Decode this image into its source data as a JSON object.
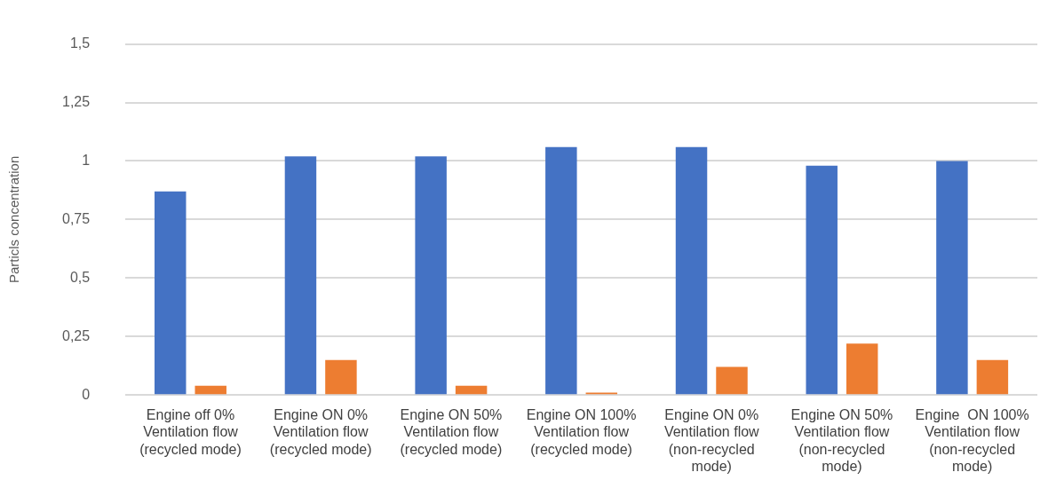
{
  "chart_data": {
    "type": "bar",
    "ylabel": "Particls concentration",
    "categories": [
      "Engine off 0%\nVentilation flow\n(recycled mode)",
      "Engine ON 0%\nVentilation flow\n(recycled mode)",
      "Engine ON 50%\nVentilation flow\n(recycled mode)",
      "Engine ON 100%\nVentilation flow\n(recycled mode)",
      "Engine ON 0%\nVentilation flow\n(non-recycled\nmode)",
      "Engine ON 50%\nVentilation flow\n(non-recycled\nmode)",
      "Engine  ON 100%\nVentilation flow\n(non-recycled\nmode)"
    ],
    "series": [
      {
        "color": "#4472c4",
        "values": [
          0.87,
          1.02,
          1.02,
          1.06,
          1.06,
          0.98,
          1.0
        ]
      },
      {
        "color": "#ed7d31",
        "values": [
          0.04,
          0.15,
          0.04,
          0.01,
          0.12,
          0.22,
          0.15
        ]
      }
    ],
    "ylim": [
      0,
      1.5
    ],
    "yticks": [
      0,
      {
        "value": 0.25,
        "label": "0,25"
      },
      {
        "value": 0.5,
        "label": "0,5"
      },
      {
        "value": 0.75,
        "label": "0,75"
      },
      1,
      {
        "value": 1.25,
        "label": "1,25"
      },
      {
        "value": 1.5,
        "label": "1,5"
      }
    ],
    "grid": "y"
  }
}
